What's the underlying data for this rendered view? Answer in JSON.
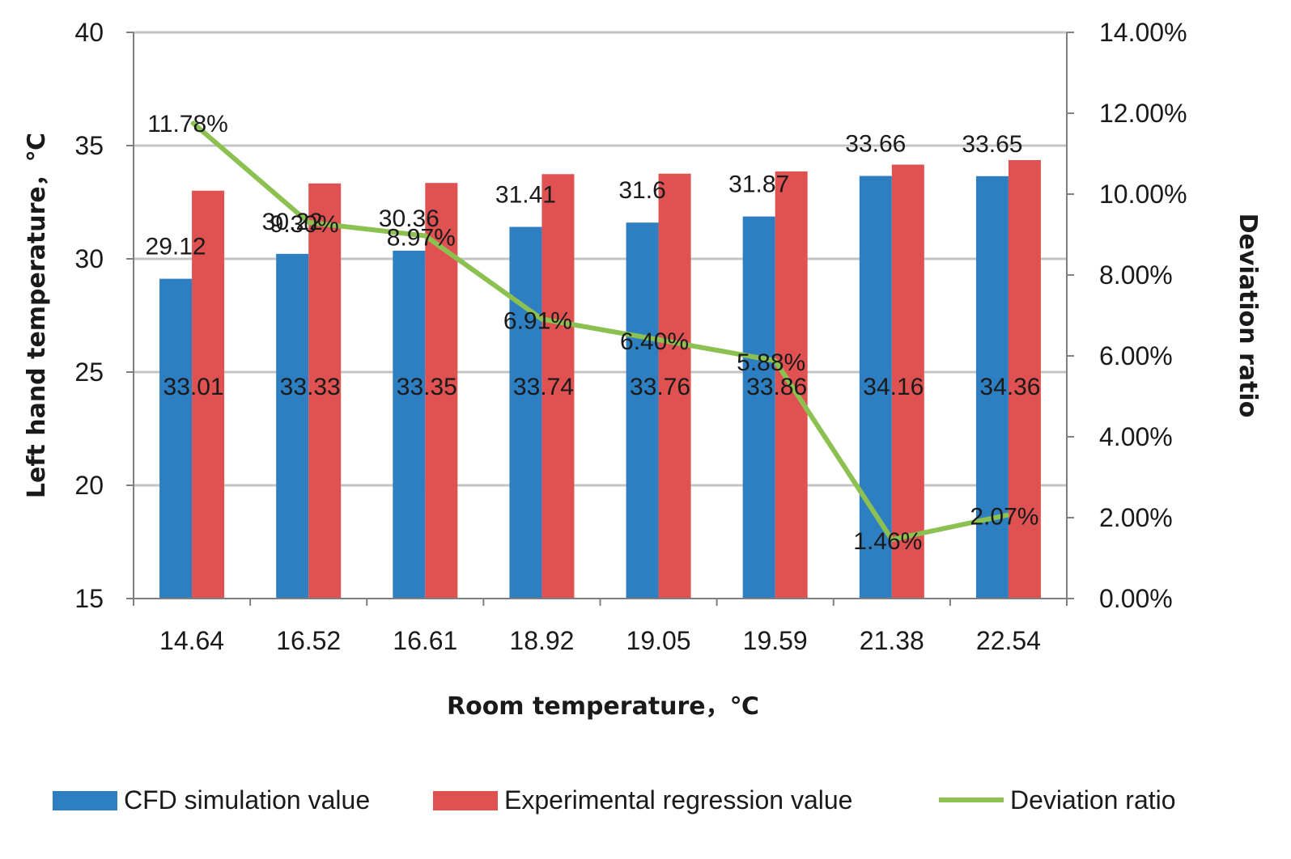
{
  "chart_data": {
    "type": "bar",
    "xlabel": "Room temperature，℃",
    "ylabel": "Left hand temperature，℃",
    "y2label": "Deviation ratio",
    "categories": [
      "14.64",
      "16.52",
      "16.61",
      "18.92",
      "19.05",
      "19.59",
      "21.38",
      "22.54"
    ],
    "ylim": [
      15,
      40
    ],
    "yticks": [
      "15",
      "20",
      "25",
      "30",
      "35",
      "40"
    ],
    "y2lim": [
      0,
      0.14
    ],
    "y2ticks": [
      "0.00%",
      "2.00%",
      "4.00%",
      "6.00%",
      "8.00%",
      "10.00%",
      "12.00%",
      "14.00%"
    ],
    "grid": true,
    "legend_position": "bottom",
    "series": [
      {
        "name": "CFD simulation value",
        "type": "bar",
        "axis": "left",
        "color": "#2e7fc1",
        "values": [
          29.12,
          30.22,
          30.36,
          31.41,
          31.6,
          31.87,
          33.66,
          33.65
        ],
        "labels": [
          "29.12",
          "30.22",
          "30.36",
          "31.41",
          "31.6",
          "31.87",
          "33.66",
          "33.65"
        ]
      },
      {
        "name": "Experimental regression value",
        "type": "bar",
        "axis": "left",
        "color": "#e05151",
        "values": [
          33.01,
          33.33,
          33.35,
          33.74,
          33.76,
          33.86,
          34.16,
          34.36
        ],
        "labels": [
          "33.01",
          "33.33",
          "33.35",
          "33.74",
          "33.76",
          "33.86",
          "34.16",
          "34.36"
        ]
      },
      {
        "name": "Deviation ratio",
        "type": "line",
        "axis": "right",
        "color": "#8cc152",
        "values": [
          0.1178,
          0.093,
          0.0897,
          0.0691,
          0.064,
          0.0588,
          0.0146,
          0.0207
        ],
        "labels": [
          "11.78%",
          "9.30%",
          "8.97%",
          "6.91%",
          "6.40%",
          "5.88%",
          "1.46%",
          "2.07%"
        ]
      }
    ]
  }
}
